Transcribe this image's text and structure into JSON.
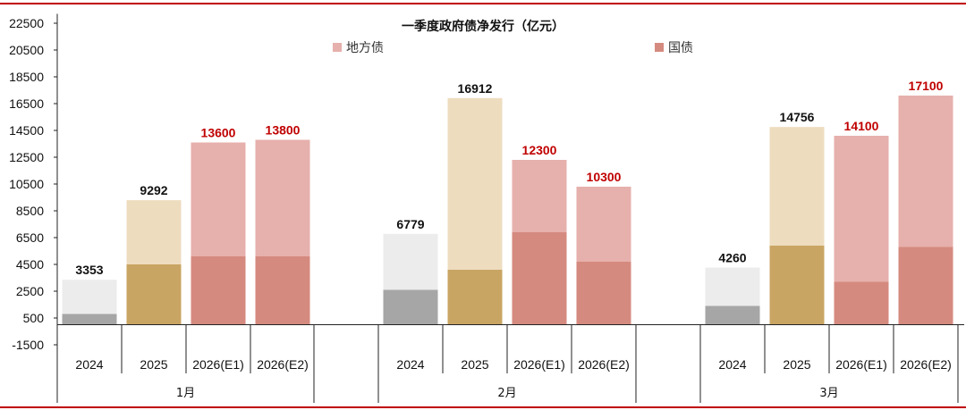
{
  "chart_data": {
    "type": "bar",
    "title": "一季度政府债净发行（亿元）",
    "y_ticks": [
      "22500",
      "20500",
      "18500",
      "16500",
      "14500",
      "12500",
      "10500",
      "8500",
      "6500",
      "4500",
      "2500",
      "500",
      "-1500"
    ],
    "ylim": [
      -1500,
      23000
    ],
    "legend": {
      "placement": "top",
      "items": [
        {
          "name": "地方债",
          "color": "#e6b0ac"
        },
        {
          "name": "国债",
          "color": "#d58a7f"
        }
      ]
    },
    "groups": [
      {
        "label": "1月",
        "bars": [
          {
            "category": "2024",
            "total": 3353,
            "national": 800,
            "total_label": "3353",
            "style": "gray",
            "label_color": "#111111"
          },
          {
            "category": "2025",
            "total": 9292,
            "national": 4500,
            "total_label": "9292",
            "style": "gold",
            "label_color": "#111111"
          },
          {
            "category": "2026(E1)",
            "total": 13600,
            "national": 5100,
            "total_label": "13600",
            "style": "red",
            "label_color": "#c00000"
          },
          {
            "category": "2026(E2)",
            "total": 13800,
            "national": 5100,
            "total_label": "13800",
            "style": "red",
            "label_color": "#c00000"
          }
        ]
      },
      {
        "label": "2月",
        "bars": [
          {
            "category": "2024",
            "total": 6779,
            "national": 2600,
            "total_label": "6779",
            "style": "gray",
            "label_color": "#111111"
          },
          {
            "category": "2025",
            "total": 16912,
            "national": 4100,
            "total_label": "16912",
            "style": "gold",
            "label_color": "#111111"
          },
          {
            "category": "2026(E1)",
            "total": 12300,
            "national": 6900,
            "total_label": "12300",
            "style": "red",
            "label_color": "#c00000"
          },
          {
            "category": "2026(E2)",
            "total": 10300,
            "national": 4700,
            "total_label": "10300",
            "style": "red",
            "label_color": "#c00000"
          }
        ]
      },
      {
        "label": "3月",
        "bars": [
          {
            "category": "2024",
            "total": 4260,
            "national": 1400,
            "total_label": "4260",
            "style": "gray",
            "label_color": "#111111"
          },
          {
            "category": "2025",
            "total": 14756,
            "national": 5900,
            "total_label": "14756",
            "style": "gold",
            "label_color": "#111111"
          },
          {
            "category": "2026(E1)",
            "total": 14100,
            "national": 3200,
            "total_label": "14100",
            "style": "red",
            "label_color": "#c00000"
          },
          {
            "category": "2026(E2)",
            "total": 17100,
            "national": 5800,
            "total_label": "17100",
            "style": "red",
            "label_color": "#c00000"
          }
        ]
      }
    ],
    "colors": {
      "gray_top": "#ececec",
      "gray_bottom": "#a6a6a6",
      "gold_top": "#eedcbf",
      "gold_bottom": "#c9a563",
      "red_top": "#e6b0ac",
      "red_bottom": "#d58a7f",
      "frame": "#c00000"
    }
  }
}
